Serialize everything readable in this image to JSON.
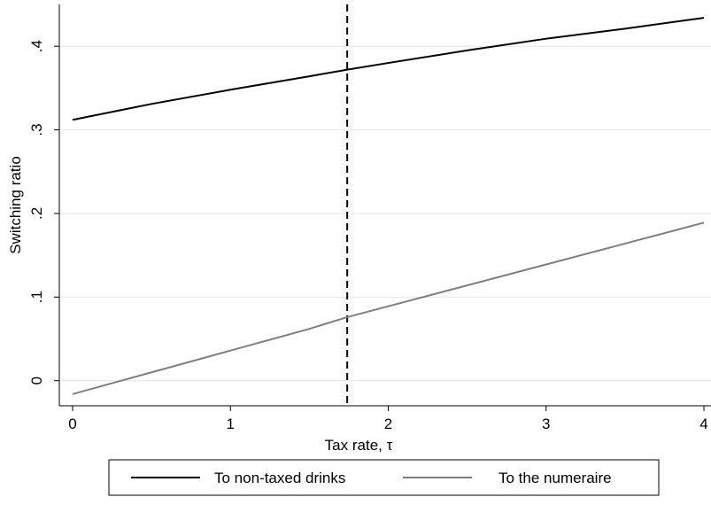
{
  "chart_data": {
    "type": "line",
    "title": "",
    "xlabel": "Tax rate, τ",
    "ylabel": "Switching ratio",
    "xlim": [
      0,
      4
    ],
    "ylim": [
      -0.03,
      0.45
    ],
    "xticks": [
      {
        "value": 0,
        "label": "0"
      },
      {
        "value": 1,
        "label": "1"
      },
      {
        "value": 2,
        "label": "2"
      },
      {
        "value": 3,
        "label": "3"
      },
      {
        "value": 4,
        "label": "4"
      }
    ],
    "yticks": [
      {
        "value": 0,
        "label": "0"
      },
      {
        "value": 0.1,
        "label": ".1"
      },
      {
        "value": 0.2,
        "label": ".2"
      },
      {
        "value": 0.3,
        "label": ".3"
      },
      {
        "value": 0.4,
        "label": ".4"
      }
    ],
    "grid": "horizontal",
    "legend_position": "bottom",
    "reference_line": {
      "x": 1.74,
      "style": "dashed",
      "color": "#000000"
    },
    "series": [
      {
        "name": "To non-taxed drinks",
        "color": "#000000",
        "x": [
          0,
          0.5,
          1,
          1.5,
          1.74,
          2,
          2.5,
          3,
          3.5,
          4
        ],
        "y": [
          0.312,
          0.331,
          0.348,
          0.364,
          0.372,
          0.38,
          0.395,
          0.409,
          0.421,
          0.434
        ]
      },
      {
        "name": "To the numeraire",
        "color": "#7f7f7f",
        "x": [
          0,
          0.5,
          1,
          1.5,
          1.74,
          2,
          2.5,
          3,
          3.5,
          4
        ],
        "y": [
          -0.016,
          0.01,
          0.036,
          0.062,
          0.076,
          0.089,
          0.114,
          0.139,
          0.164,
          0.189
        ]
      }
    ]
  }
}
